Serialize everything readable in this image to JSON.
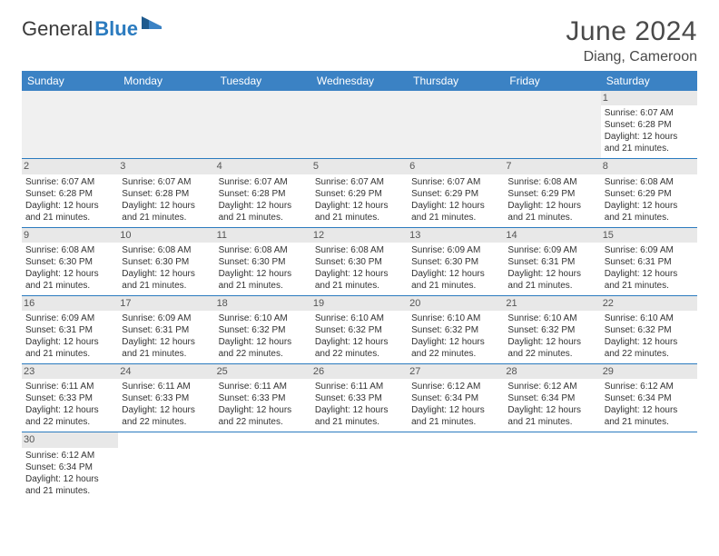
{
  "brand": {
    "part1": "General",
    "part2": "Blue"
  },
  "title": "June 2024",
  "location": "Diang, Cameroon",
  "colors": {
    "header_bg": "#3b82c4",
    "header_text": "#ffffff",
    "daynum_bg": "#e8e8e8",
    "cell_border": "#2b7bbf",
    "text": "#333333",
    "logo_blue": "#2b7bbf"
  },
  "day_headers": [
    "Sunday",
    "Monday",
    "Tuesday",
    "Wednesday",
    "Thursday",
    "Friday",
    "Saturday"
  ],
  "weeks": [
    [
      null,
      null,
      null,
      null,
      null,
      null,
      {
        "n": "1",
        "sr": "6:07 AM",
        "ss": "6:28 PM",
        "dl": "12 hours and 21 minutes."
      }
    ],
    [
      {
        "n": "2",
        "sr": "6:07 AM",
        "ss": "6:28 PM",
        "dl": "12 hours and 21 minutes."
      },
      {
        "n": "3",
        "sr": "6:07 AM",
        "ss": "6:28 PM",
        "dl": "12 hours and 21 minutes."
      },
      {
        "n": "4",
        "sr": "6:07 AM",
        "ss": "6:28 PM",
        "dl": "12 hours and 21 minutes."
      },
      {
        "n": "5",
        "sr": "6:07 AM",
        "ss": "6:29 PM",
        "dl": "12 hours and 21 minutes."
      },
      {
        "n": "6",
        "sr": "6:07 AM",
        "ss": "6:29 PM",
        "dl": "12 hours and 21 minutes."
      },
      {
        "n": "7",
        "sr": "6:08 AM",
        "ss": "6:29 PM",
        "dl": "12 hours and 21 minutes."
      },
      {
        "n": "8",
        "sr": "6:08 AM",
        "ss": "6:29 PM",
        "dl": "12 hours and 21 minutes."
      }
    ],
    [
      {
        "n": "9",
        "sr": "6:08 AM",
        "ss": "6:30 PM",
        "dl": "12 hours and 21 minutes."
      },
      {
        "n": "10",
        "sr": "6:08 AM",
        "ss": "6:30 PM",
        "dl": "12 hours and 21 minutes."
      },
      {
        "n": "11",
        "sr": "6:08 AM",
        "ss": "6:30 PM",
        "dl": "12 hours and 21 minutes."
      },
      {
        "n": "12",
        "sr": "6:08 AM",
        "ss": "6:30 PM",
        "dl": "12 hours and 21 minutes."
      },
      {
        "n": "13",
        "sr": "6:09 AM",
        "ss": "6:30 PM",
        "dl": "12 hours and 21 minutes."
      },
      {
        "n": "14",
        "sr": "6:09 AM",
        "ss": "6:31 PM",
        "dl": "12 hours and 21 minutes."
      },
      {
        "n": "15",
        "sr": "6:09 AM",
        "ss": "6:31 PM",
        "dl": "12 hours and 21 minutes."
      }
    ],
    [
      {
        "n": "16",
        "sr": "6:09 AM",
        "ss": "6:31 PM",
        "dl": "12 hours and 21 minutes."
      },
      {
        "n": "17",
        "sr": "6:09 AM",
        "ss": "6:31 PM",
        "dl": "12 hours and 21 minutes."
      },
      {
        "n": "18",
        "sr": "6:10 AM",
        "ss": "6:32 PM",
        "dl": "12 hours and 22 minutes."
      },
      {
        "n": "19",
        "sr": "6:10 AM",
        "ss": "6:32 PM",
        "dl": "12 hours and 22 minutes."
      },
      {
        "n": "20",
        "sr": "6:10 AM",
        "ss": "6:32 PM",
        "dl": "12 hours and 22 minutes."
      },
      {
        "n": "21",
        "sr": "6:10 AM",
        "ss": "6:32 PM",
        "dl": "12 hours and 22 minutes."
      },
      {
        "n": "22",
        "sr": "6:10 AM",
        "ss": "6:32 PM",
        "dl": "12 hours and 22 minutes."
      }
    ],
    [
      {
        "n": "23",
        "sr": "6:11 AM",
        "ss": "6:33 PM",
        "dl": "12 hours and 22 minutes."
      },
      {
        "n": "24",
        "sr": "6:11 AM",
        "ss": "6:33 PM",
        "dl": "12 hours and 22 minutes."
      },
      {
        "n": "25",
        "sr": "6:11 AM",
        "ss": "6:33 PM",
        "dl": "12 hours and 22 minutes."
      },
      {
        "n": "26",
        "sr": "6:11 AM",
        "ss": "6:33 PM",
        "dl": "12 hours and 21 minutes."
      },
      {
        "n": "27",
        "sr": "6:12 AM",
        "ss": "6:34 PM",
        "dl": "12 hours and 21 minutes."
      },
      {
        "n": "28",
        "sr": "6:12 AM",
        "ss": "6:34 PM",
        "dl": "12 hours and 21 minutes."
      },
      {
        "n": "29",
        "sr": "6:12 AM",
        "ss": "6:34 PM",
        "dl": "12 hours and 21 minutes."
      }
    ],
    [
      {
        "n": "30",
        "sr": "6:12 AM",
        "ss": "6:34 PM",
        "dl": "12 hours and 21 minutes."
      },
      null,
      null,
      null,
      null,
      null,
      null
    ]
  ],
  "labels": {
    "sunrise": "Sunrise: ",
    "sunset": "Sunset: ",
    "daylight": "Daylight: "
  }
}
